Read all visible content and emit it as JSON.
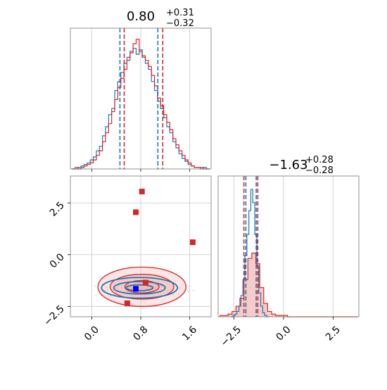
{
  "chart_data": [
    {
      "panel": "marginal-x",
      "type": "step-histogram",
      "title": {
        "base": "0.80",
        "sup": "+0.31",
        "sub": "−0.32"
      },
      "xlim": [
        -0.35,
        1.95
      ],
      "quantiles": {
        "blue": [
          0.46,
          1.08
        ],
        "red": [
          0.53,
          1.16
        ]
      },
      "series": [
        {
          "color": "#1f77b4",
          "x": [
            -0.3,
            -0.25,
            -0.2,
            -0.15,
            -0.1,
            -0.05,
            0,
            0.05,
            0.1,
            0.15,
            0.2,
            0.25,
            0.3,
            0.35,
            0.4,
            0.45,
            0.5,
            0.55,
            0.6,
            0.65,
            0.7,
            0.75,
            0.8,
            0.85,
            0.9,
            0.95,
            1,
            1.05,
            1.1,
            1.15,
            1.2,
            1.25,
            1.3,
            1.35,
            1.4,
            1.45,
            1.5,
            1.55,
            1.6,
            1.65,
            1.7,
            1.75,
            1.8,
            1.85,
            1.9
          ],
          "values": [
            0,
            1,
            0,
            2,
            3,
            4,
            6,
            8,
            12,
            15,
            22,
            28,
            36,
            40,
            52,
            58,
            64,
            70,
            74,
            78,
            80,
            76,
            79,
            74,
            70,
            66,
            58,
            52,
            45,
            40,
            34,
            28,
            24,
            18,
            14,
            10,
            7,
            5,
            3,
            2,
            1,
            1,
            0,
            1,
            0
          ]
        },
        {
          "color": "#d62728",
          "x": [
            -0.3,
            -0.25,
            -0.2,
            -0.15,
            -0.1,
            -0.05,
            0,
            0.05,
            0.1,
            0.15,
            0.2,
            0.25,
            0.3,
            0.35,
            0.4,
            0.45,
            0.5,
            0.55,
            0.6,
            0.65,
            0.7,
            0.75,
            0.8,
            0.85,
            0.9,
            0.95,
            1,
            1.05,
            1.1,
            1.15,
            1.2,
            1.25,
            1.3,
            1.35,
            1.4,
            1.45,
            1.5,
            1.55,
            1.6,
            1.65,
            1.7,
            1.75,
            1.8,
            1.85,
            1.9
          ],
          "values": [
            0,
            0,
            1,
            1,
            2,
            3,
            4,
            6,
            9,
            12,
            18,
            24,
            30,
            38,
            46,
            54,
            60,
            66,
            72,
            77,
            83,
            86,
            78,
            75,
            72,
            68,
            62,
            55,
            47,
            42,
            36,
            31,
            26,
            20,
            16,
            12,
            9,
            6,
            4,
            2,
            1,
            1,
            1,
            0,
            0
          ]
        }
      ]
    },
    {
      "panel": "marginal-y",
      "type": "step-histogram",
      "title": {
        "base": "−1.63",
        "sup": "+0.28",
        "sub": "−0.28"
      },
      "xlim": [
        -3.3,
        3.8
      ],
      "xticks": [
        "−2.5",
        "0.0",
        "2.5"
      ],
      "quantiles": {
        "blue": [
          -1.9,
          -1.38
        ],
        "red": [
          -2.0,
          -1.3
        ]
      },
      "series": [
        {
          "color": "#1f77b4",
          "x": [
            -2.6,
            -2.5,
            -2.4,
            -2.3,
            -2.2,
            -2.1,
            -2.0,
            -1.9,
            -1.8,
            -1.7,
            -1.6,
            -1.5,
            -1.4,
            -1.3,
            -1.2,
            -1.1,
            -1.0,
            -0.9,
            -0.8
          ],
          "values": [
            0,
            1,
            2,
            4,
            8,
            16,
            28,
            46,
            62,
            80,
            96,
            86,
            62,
            38,
            18,
            8,
            3,
            1,
            0
          ]
        },
        {
          "color": "#d62728",
          "x": [
            -3.1,
            -2.9,
            -2.7,
            -2.5,
            -2.3,
            -2.1,
            -1.9,
            -1.7,
            -1.5,
            -1.3,
            -1.1,
            -0.9,
            -0.7,
            -0.5,
            -0.3,
            -0.1,
            0.1,
            0.3,
            0.5,
            1.0,
            1.5,
            2.0,
            2.5,
            3.0,
            3.5
          ],
          "values": [
            1,
            1,
            2,
            4,
            8,
            14,
            28,
            44,
            48,
            40,
            22,
            10,
            4,
            2,
            1,
            1,
            1,
            0,
            0,
            0,
            0,
            0,
            0,
            0,
            0
          ]
        }
      ]
    },
    {
      "panel": "joint",
      "type": "contour-scatter",
      "xlim": [
        -0.35,
        1.95
      ],
      "ylim": [
        -3.0,
        3.8
      ],
      "xticks": [
        "0.0",
        "0.8",
        "1.6"
      ],
      "yticks": [
        "2.5",
        "0.0",
        "−2.5"
      ],
      "blue_contours": [
        {
          "cx": 0.78,
          "cy": -1.6,
          "rx": 0.62,
          "ry": 0.5
        },
        {
          "cx": 0.78,
          "cy": -1.6,
          "rx": 0.42,
          "ry": 0.3
        },
        {
          "cx": 0.78,
          "cy": -1.6,
          "rx": 0.22,
          "ry": 0.14
        }
      ],
      "red_contours": [
        {
          "cx": 0.82,
          "cy": -1.55,
          "rx": 0.72,
          "ry": 0.95
        },
        {
          "cx": 0.82,
          "cy": -1.55,
          "rx": 0.52,
          "ry": 0.6
        },
        {
          "cx": 0.82,
          "cy": -1.55,
          "rx": 0.28,
          "ry": 0.3
        }
      ],
      "red_markers": [
        {
          "x": 0.82,
          "y": 3.05
        },
        {
          "x": 0.72,
          "y": 2.05
        },
        {
          "x": 1.65,
          "y": 0.6
        },
        {
          "x": 0.88,
          "y": -1.35
        },
        {
          "x": 0.58,
          "y": -2.35
        }
      ],
      "blue_markers": [
        {
          "x": 0.72,
          "y": -1.65
        }
      ]
    }
  ],
  "colors": {
    "blue": "#1f77b4",
    "red": "#d62728",
    "red_fill": "#f1b7b3",
    "grid": "#c8c8c8",
    "axis": "#777777"
  }
}
